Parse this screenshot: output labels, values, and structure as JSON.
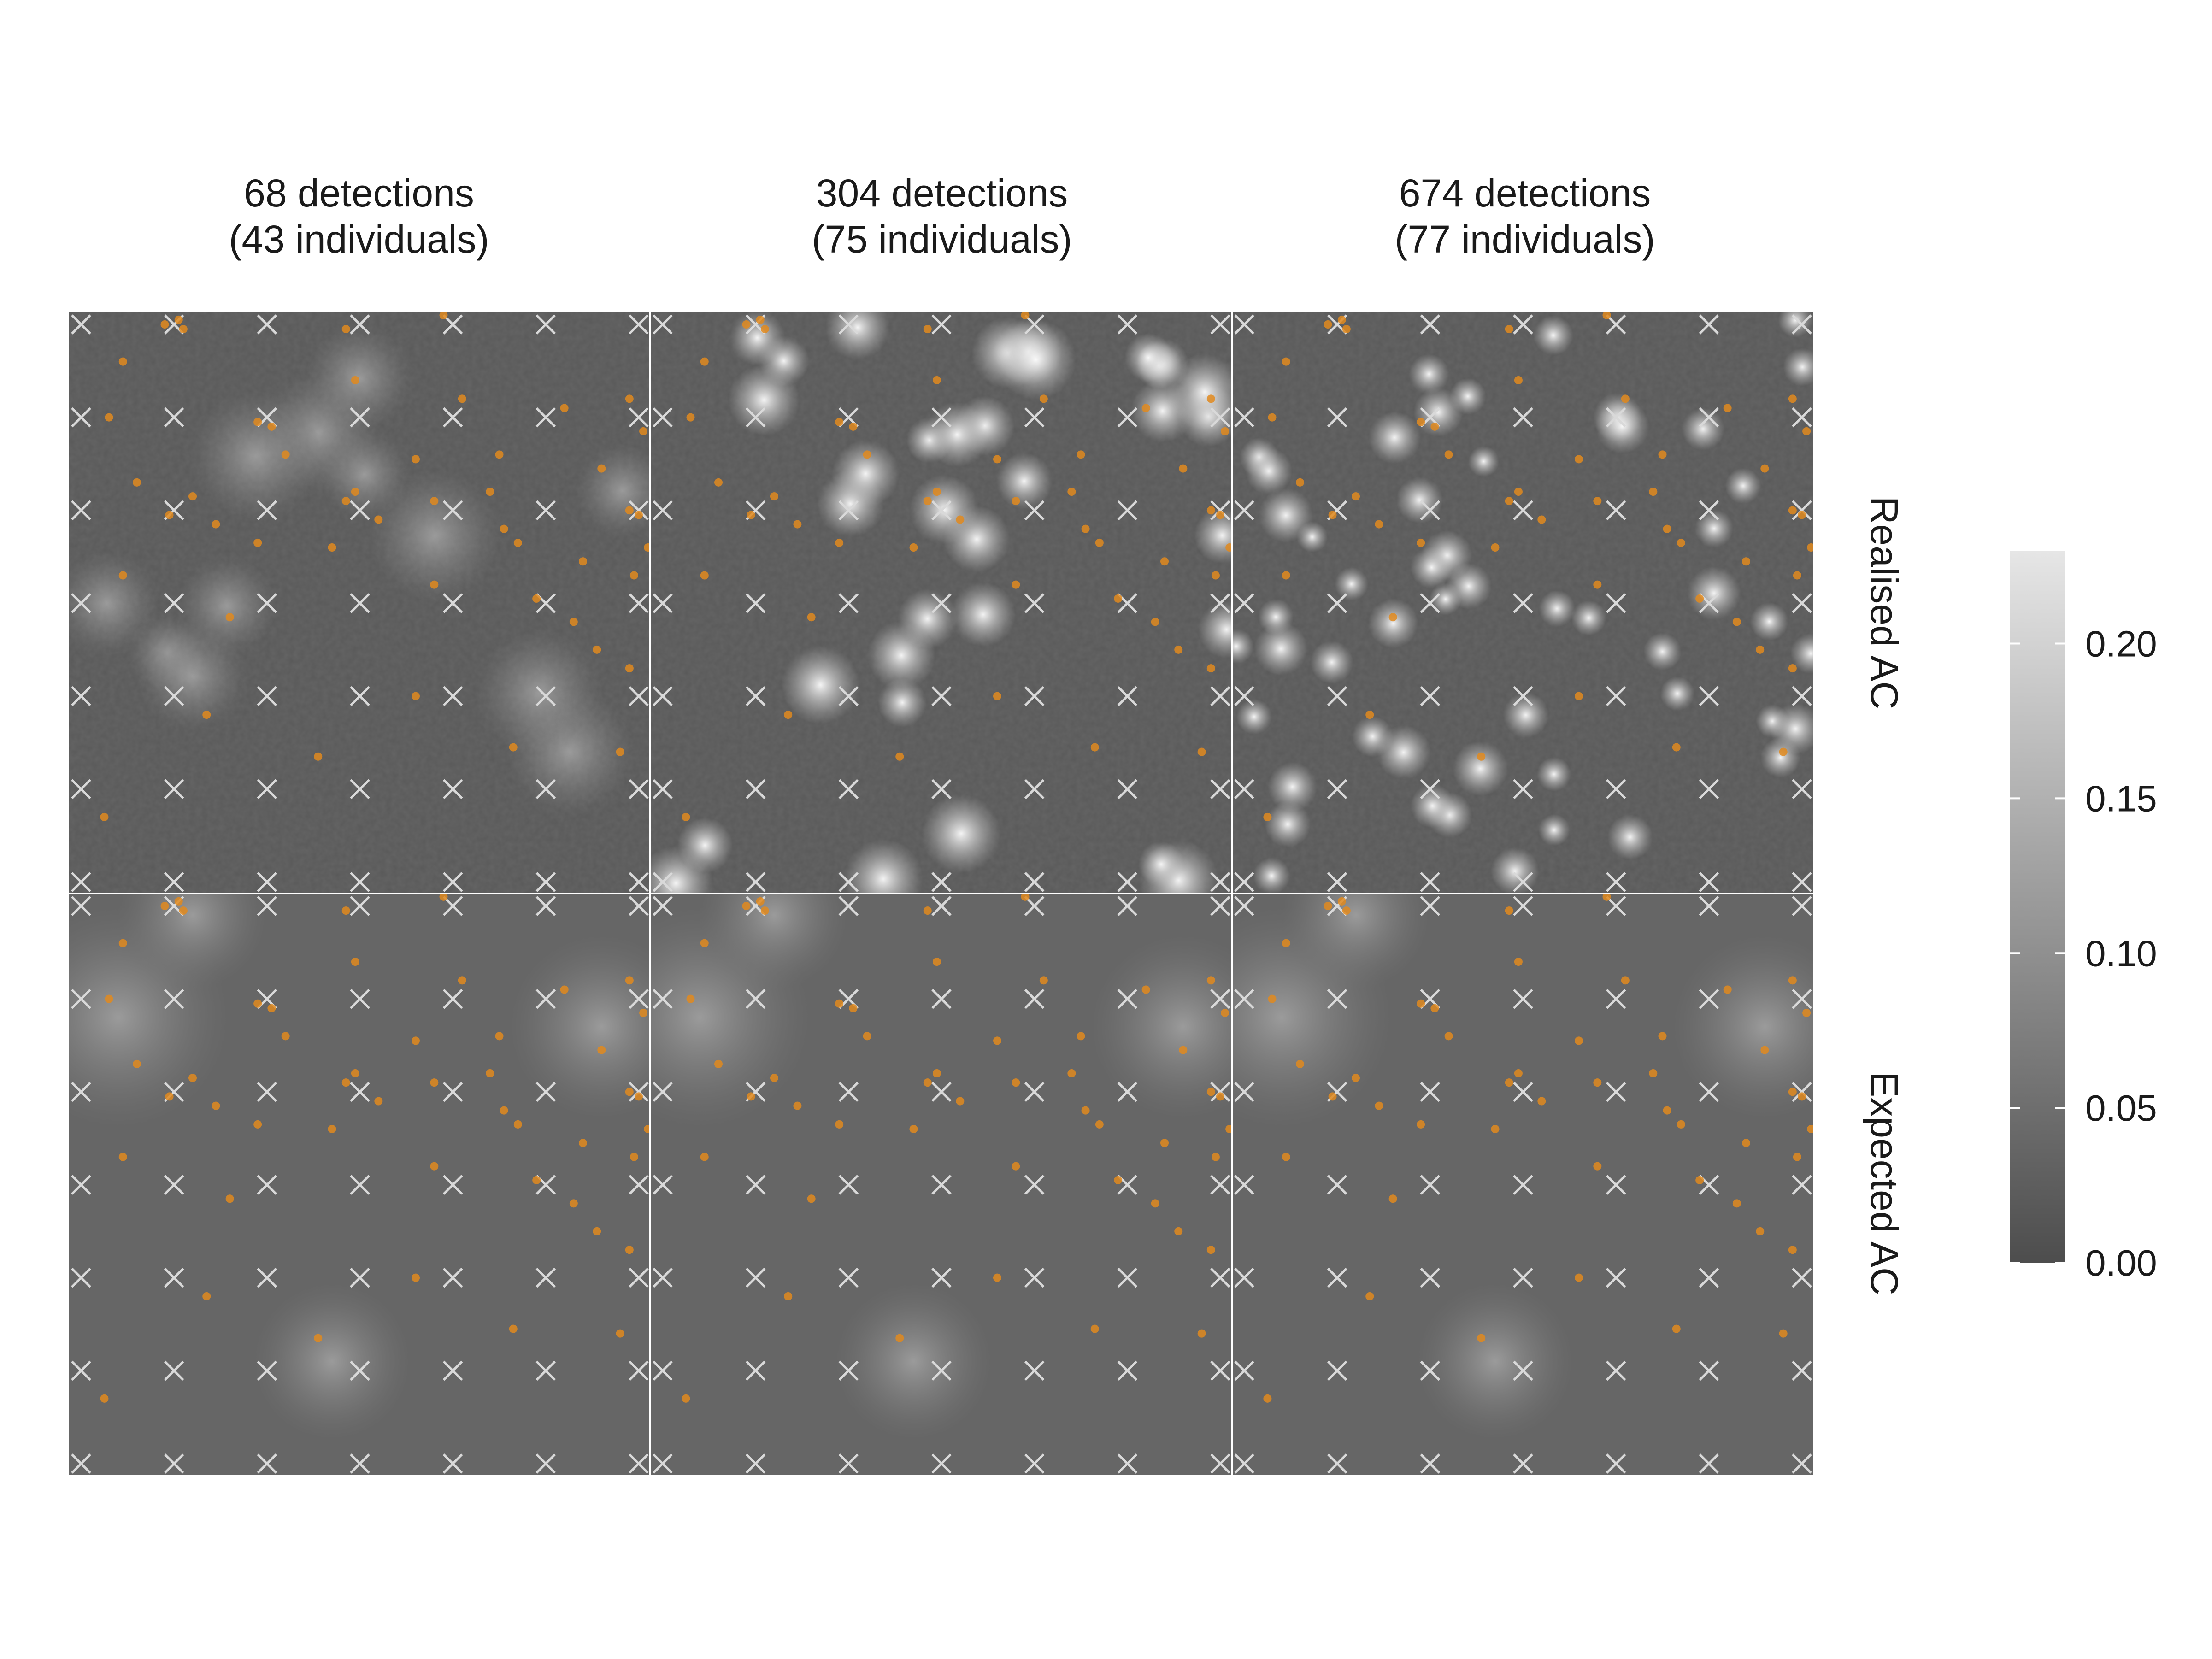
{
  "chart_data": {
    "type": "heatmap",
    "title": "",
    "columns": [
      {
        "title_line1": "68 detections",
        "title_line2": "(43 individuals)",
        "detections": 68,
        "individuals": 43
      },
      {
        "title_line1": "304 detections",
        "title_line2": "(75 individuals)",
        "detections": 304,
        "individuals": 75
      },
      {
        "title_line1": "674 detections",
        "title_line2": "(77 individuals)",
        "detections": 674,
        "individuals": 77
      }
    ],
    "rows": [
      {
        "label": "Realised AC"
      },
      {
        "label": "Expected AC"
      }
    ],
    "colorbar": {
      "ticks": [
        "0.00",
        "0.05",
        "0.10",
        "0.15",
        "0.20"
      ],
      "tick_values": [
        0,
        0.05,
        0.1,
        0.15,
        0.2
      ],
      "range": [
        0,
        0.23
      ],
      "low_color": "#4d4d4d",
      "high_color": "#e6e6e6"
    },
    "traps": {
      "marker": "x",
      "color": "#d9d9d9",
      "grid": [
        7,
        7
      ],
      "x": [
        0,
        1,
        2,
        3,
        4,
        5,
        6
      ],
      "y": [
        0,
        1,
        2,
        3,
        4,
        5,
        6
      ]
    },
    "points": {
      "color": "#e08a1e",
      "x": [
        0.9,
        1.05,
        1.1,
        2.85,
        3.9,
        0.45,
        2.95,
        4.1,
        5.2,
        5.9,
        0.3,
        1.9,
        2.05,
        2.2,
        3.6,
        4.5,
        5.6,
        6.05,
        0.6,
        1.2,
        2.85,
        2.95,
        3.8,
        4.4,
        5.9,
        0.95,
        1.45,
        3.2,
        4.55,
        6.0,
        1.9,
        2.7,
        4.7,
        5.4,
        6.1,
        0.45,
        3.8,
        5.95,
        1.6,
        4.9,
        5.3,
        5.55,
        5.9,
        3.6,
        4.65,
        1.35,
        5.8,
        2.55,
        0.25
      ],
      "y": [
        6.0,
        6.05,
        5.95,
        5.95,
        6.1,
        5.6,
        5.4,
        5.2,
        5.1,
        5.2,
        5.0,
        4.95,
        4.9,
        4.6,
        4.55,
        4.6,
        4.45,
        4.85,
        4.3,
        4.15,
        4.1,
        4.2,
        4.1,
        4.2,
        4.0,
        3.95,
        3.85,
        3.9,
        3.8,
        3.95,
        3.65,
        3.6,
        3.65,
        3.45,
        3.6,
        3.3,
        3.2,
        3.3,
        2.85,
        3.05,
        2.8,
        2.5,
        2.3,
        2.0,
        1.45,
        1.8,
        1.4,
        1.35,
        0.7
      ]
    }
  }
}
